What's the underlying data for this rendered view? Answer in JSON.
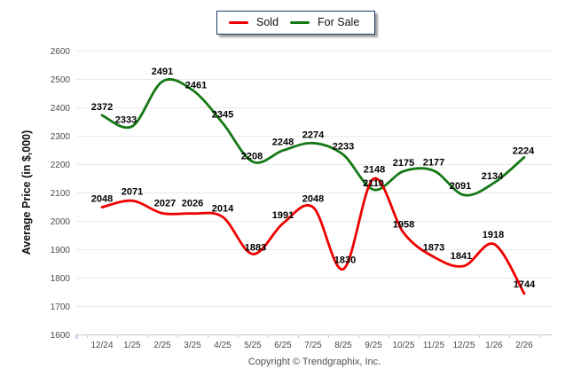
{
  "chart_data": {
    "type": "line",
    "title": "",
    "xlabel": "",
    "ylabel": "Average Price (in $,000)",
    "ylim": [
      1600,
      2600
    ],
    "ytick_step": 100,
    "grid": true,
    "legend_position": "top-center",
    "point_labels": true,
    "categories": [
      "12/24",
      "1/25",
      "2/25",
      "3/25",
      "4/25",
      "5/25",
      "6/25",
      "7/25",
      "8/25",
      "9/25",
      "10/25",
      "11/25",
      "12/25",
      "1/26",
      "2/26"
    ],
    "series": [
      {
        "name": "Sold",
        "color": "#ee0000",
        "values": [
          2048,
          2071,
          2027,
          2026,
          2014,
          1883,
          1991,
          2048,
          1830,
          2148,
          1958,
          1873,
          1841,
          1918,
          1744
        ]
      },
      {
        "name": "For Sale",
        "color": "#147814",
        "values": [
          2372,
          2333,
          2491,
          2461,
          2345,
          2208,
          2248,
          2274,
          2233,
          2110,
          2175,
          2177,
          2091,
          2134,
          2224
        ]
      }
    ],
    "colors": {
      "gridline": "#e9e9e9",
      "axis_line": "#c9c9c9",
      "legend_border": "#1b3a68"
    }
  },
  "footer": {
    "copyright": "Copyright © Trendgraphix, Inc."
  }
}
